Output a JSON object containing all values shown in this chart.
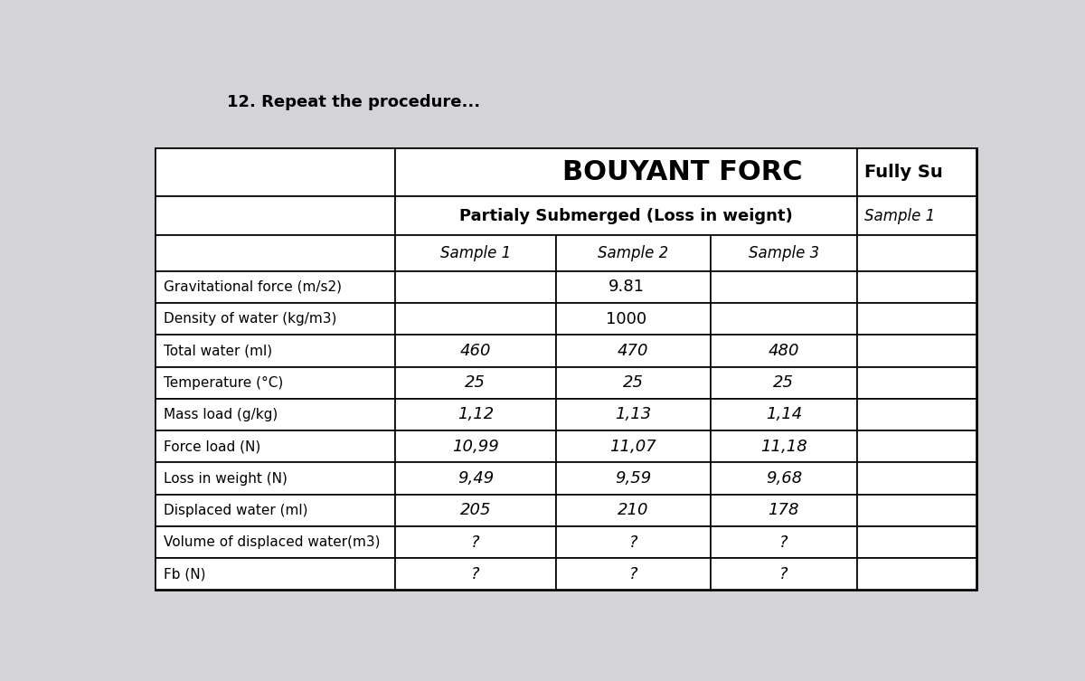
{
  "title": "BOUYANT FORC",
  "subtitle_partial": "Partialy Submerged (Loss in weignt)",
  "subtitle_fully": "Fully Su",
  "sample_headers_partial": [
    "Sample 1",
    "Sample 2",
    "Sample 3"
  ],
  "sample_header_fully": "Sample 1",
  "row_labels": [
    "Gravitational force (m/s2)",
    "Density of water (kg/m3)",
    "Total water (ml)",
    "Temperature (°C)",
    "Mass load (g/kg)",
    "Force load (N)",
    "Loss in weight (N)",
    "Displaced water (ml)",
    "Volume of displaced water(m3)",
    "Fb (N)"
  ],
  "col1_data": [
    "",
    "",
    "460",
    "25",
    "1,12",
    "10,99",
    "9,49",
    "205",
    "?",
    "?"
  ],
  "col2_data": [
    "9.81",
    "1000",
    "470",
    "25",
    "1,13",
    "11,07",
    "9,59",
    "210",
    "?",
    "?"
  ],
  "col3_data": [
    "",
    "",
    "480",
    "25",
    "1,14",
    "11,18",
    "9,68",
    "178",
    "?",
    "?"
  ],
  "col4_data": [
    "",
    "",
    "",
    "",
    "",
    "",
    "",
    "",
    "",
    ""
  ],
  "bg_color": "#d4d4d8",
  "table_bg": "#ffffff",
  "font_color": "#000000",
  "top_text": "12. Repeat the procedure..."
}
